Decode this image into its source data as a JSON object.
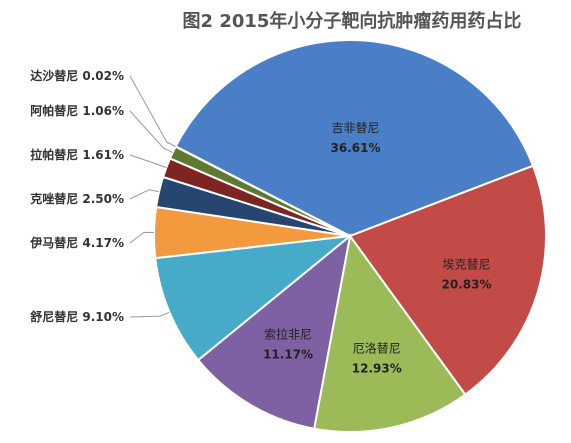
{
  "chart_data": {
    "type": "pie",
    "title": "图2 2015年小分子靶向抗肿瘤药用药占比",
    "slices": [
      {
        "name": "吉非替尼",
        "value": 36.61,
        "label": "36.61%",
        "color": "#4A7EC6",
        "label_position": "inside"
      },
      {
        "name": "埃克替尼",
        "value": 20.83,
        "label": "20.83%",
        "color": "#C24B48",
        "label_position": "inside"
      },
      {
        "name": "厄洛替尼",
        "value": 12.93,
        "label": "12.93%",
        "color": "#9BBB58",
        "label_position": "inside"
      },
      {
        "name": "索拉非尼",
        "value": 11.17,
        "label": "11.17%",
        "color": "#7E61A3",
        "label_position": "inside"
      },
      {
        "name": "舒尼替尼",
        "value": 9.1,
        "label": "9.10%",
        "color": "#45ABC8",
        "label_position": "outside"
      },
      {
        "name": "伊马替尼",
        "value": 4.17,
        "label": "4.17%",
        "color": "#F39A3F",
        "label_position": "outside"
      },
      {
        "name": "克唑替尼",
        "value": 2.5,
        "label": "2.50%",
        "color": "#26466F",
        "label_position": "outside"
      },
      {
        "name": "拉帕替尼",
        "value": 1.61,
        "label": "1.61%",
        "color": "#7C2523",
        "label_position": "outside"
      },
      {
        "name": "阿帕替尼",
        "value": 1.06,
        "label": "1.06%",
        "color": "#5E7930",
        "label_position": "outside"
      },
      {
        "name": "达沙替尼",
        "value": 0.02,
        "label": "0.02%",
        "color": "#3B2B52",
        "label_position": "outside"
      }
    ]
  }
}
